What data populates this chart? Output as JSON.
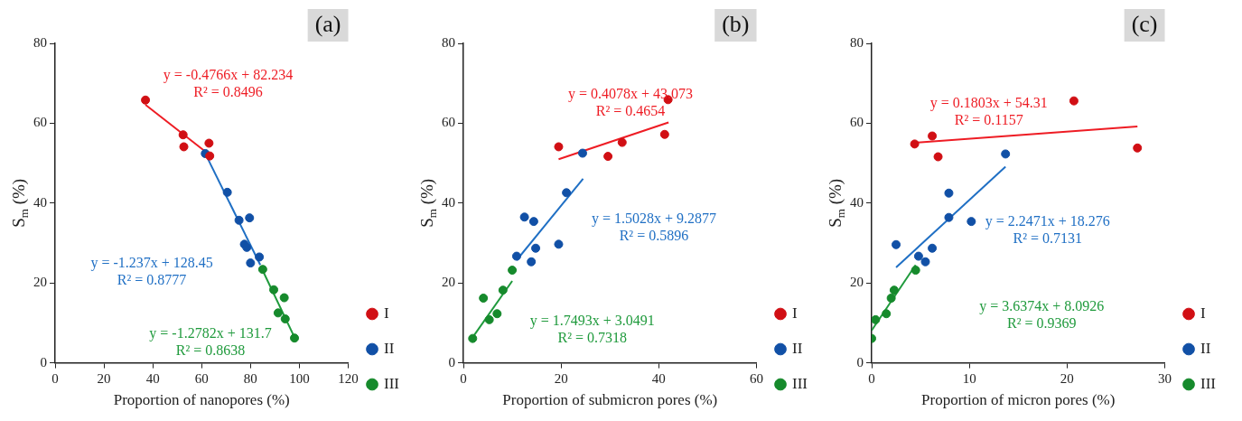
{
  "chart_data": [
    {
      "type": "scatter",
      "title": "(a)",
      "xlabel": "Proportion of nanopores (%)",
      "ylabel": "S$_{m}$ (%)",
      "xlim": [
        0,
        120
      ],
      "xticks": [
        0,
        20,
        40,
        60,
        80,
        100,
        120
      ],
      "ylim": [
        0,
        80
      ],
      "yticks": [
        0,
        20,
        40,
        60,
        80
      ],
      "grid": false,
      "legend": "right",
      "marker": "circle",
      "series": [
        {
          "name": "I",
          "type": "scatter",
          "color": "#d10f14",
          "x": [
            37,
            52.4,
            52.7,
            63,
            63.3
          ],
          "values": [
            65.8,
            57.1,
            54.1,
            55,
            51.8
          ]
        },
        {
          "name": "II",
          "type": "scatter",
          "color": "#1150a6",
          "x": [
            61.5,
            70.5,
            75.3,
            79.6,
            77.5,
            78.5,
            80,
            83.6
          ],
          "values": [
            52.4,
            42.7,
            35.7,
            36.3,
            29.7,
            28.9,
            25,
            26.5
          ]
        },
        {
          "name": "III",
          "type": "scatter",
          "color": "#168a2c",
          "x": [
            85,
            89.5,
            93.8,
            91.3,
            94.2,
            98
          ],
          "values": [
            23.4,
            18.3,
            16.3,
            12.5,
            11,
            6.2
          ]
        },
        {
          "type": "line",
          "marker": "none",
          "color": "#ee1c24",
          "x": [
            37,
            64
          ],
          "values": [
            64.6,
            51.7
          ]
        },
        {
          "type": "line",
          "marker": "none",
          "color": "#1f6fc4",
          "x": [
            61,
            84
          ],
          "values": [
            53,
            24.5
          ]
        },
        {
          "type": "line",
          "marker": "none",
          "color": "#1f9a3c",
          "x": [
            85,
            98
          ],
          "values": [
            23.1,
            6.4
          ]
        }
      ],
      "annotations": [
        "y = -0.4766x + 82.234\nR² = 0.8496",
        "y = -1.237x + 128.45\nR² = 0.8777",
        "y = -1.2782x + 131.7\nR² = 0.8638"
      ]
    },
    {
      "type": "scatter",
      "title": "(b)",
      "xlabel": "Proportion of submicron pores (%)",
      "ylabel": "S$_{m}$ (%)",
      "xlim": [
        0,
        60
      ],
      "xticks": [
        0,
        20,
        40,
        60
      ],
      "ylim": [
        0,
        80
      ],
      "yticks": [
        0,
        20,
        40,
        60,
        80
      ],
      "grid": false,
      "legend": "right",
      "marker": "circle",
      "series": [
        {
          "name": "I",
          "type": "scatter",
          "color": "#d10f14",
          "x": [
            19.5,
            29.6,
            32.5,
            41.2,
            41.9
          ],
          "values": [
            54.1,
            51.7,
            55.2,
            57.2,
            65.9
          ]
        },
        {
          "name": "II",
          "type": "scatter",
          "color": "#1150a6",
          "x": [
            24.4,
            21.1,
            12.5,
            14.4,
            19.5,
            14.8,
            10.9,
            13.9
          ],
          "values": [
            52.5,
            42.6,
            36.5,
            35.4,
            29.7,
            28.7,
            26.7,
            25.3
          ]
        },
        {
          "name": "III",
          "type": "scatter",
          "color": "#168a2c",
          "x": [
            10,
            8.1,
            4.1,
            6.9,
            5.3,
            1.9
          ],
          "values": [
            23.2,
            18.2,
            16.2,
            12.3,
            10.8,
            6.1
          ]
        },
        {
          "type": "line",
          "marker": "none",
          "color": "#ee1c24",
          "x": [
            19.5,
            42
          ],
          "values": [
            51,
            60.2
          ]
        },
        {
          "type": "line",
          "marker": "none",
          "color": "#1f6fc4",
          "x": [
            10.9,
            24.5
          ],
          "values": [
            25.7,
            46.1
          ]
        },
        {
          "type": "line",
          "marker": "none",
          "color": "#1f9a3c",
          "x": [
            1.9,
            10
          ],
          "values": [
            6.4,
            20.5
          ]
        }
      ],
      "annotations": [
        "y = 0.4078x + 43.073\nR² = 0.4654",
        "y = 1.5028x + 9.2877\nR² = 0.5896",
        "y = 1.7493x + 3.0491\nR² = 0.7318"
      ]
    },
    {
      "type": "scatter",
      "title": "(c)",
      "xlabel": "Proportion of micron pores (%)",
      "ylabel": "S$_{m}$ (%)",
      "xlim": [
        0,
        30
      ],
      "xticks": [
        0,
        10,
        20,
        30
      ],
      "ylim": [
        0,
        80
      ],
      "yticks": [
        0,
        20,
        40,
        60,
        80
      ],
      "grid": false,
      "legend": "right",
      "marker": "circle",
      "series": [
        {
          "name": "I",
          "type": "scatter",
          "color": "#d10f14",
          "x": [
            4.4,
            6.2,
            6.8,
            20.7,
            27.2
          ],
          "values": [
            54.8,
            56.8,
            51.6,
            65.6,
            53.8
          ]
        },
        {
          "name": "II",
          "type": "scatter",
          "color": "#1150a6",
          "x": [
            13.7,
            7.9,
            7.9,
            10.2,
            2.5,
            6.2,
            4.8,
            5.5
          ],
          "values": [
            52.3,
            42.5,
            36.4,
            35.4,
            29.6,
            28.7,
            26.7,
            25.3
          ]
        },
        {
          "name": "III",
          "type": "scatter",
          "color": "#168a2c",
          "x": [
            4.5,
            2.3,
            2,
            1.5,
            0.4,
            0
          ],
          "values": [
            23.2,
            18.2,
            16.2,
            12.3,
            10.8,
            6.1
          ]
        },
        {
          "type": "line",
          "marker": "none",
          "color": "#ee1c24",
          "x": [
            4.4,
            27.2
          ],
          "values": [
            55.1,
            59.2
          ]
        },
        {
          "type": "line",
          "marker": "none",
          "color": "#1f6fc4",
          "x": [
            2.5,
            13.7
          ],
          "values": [
            23.9,
            49.1
          ]
        },
        {
          "type": "line",
          "marker": "none",
          "color": "#1f9a3c",
          "x": [
            0,
            4.5
          ],
          "values": [
            8.1,
            24.5
          ]
        }
      ],
      "annotations": [
        "y = 0.1803x + 54.31\nR² = 0.1157",
        "y = 2.2471x + 18.276\nR² = 0.7131",
        "y = 3.6374x + 8.0926\nR² = 0.9369"
      ]
    }
  ]
}
